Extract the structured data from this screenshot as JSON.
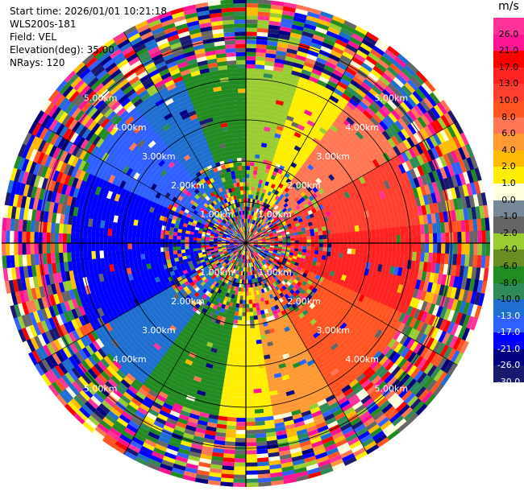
{
  "header": {
    "start_time": "Start time: 2026/01/01 10:21:18",
    "instrument": "WLS200s-181",
    "field": "Field: VEL",
    "elevation": "Elevation(deg): 35.00",
    "nrays": "NRays: 120"
  },
  "chart_data": {
    "type": "heatmap",
    "subtype": "polar-ppi",
    "nrays": 120,
    "range_ring_labels_km": [
      "1.00km",
      "2.00km",
      "3.00km",
      "4.00km",
      "5.00km"
    ],
    "range_rings_km": [
      1,
      2,
      3,
      4,
      5
    ],
    "grid": true,
    "colorbar": {
      "unit": "m/s",
      "tick_labels": [
        "26.0",
        "21.0",
        "17.0",
        "13.0",
        "10.0",
        "8.0",
        "6.0",
        "4.0",
        "2.0",
        "1.0",
        "0.0",
        "-1.0",
        "-2.0",
        "-4.0",
        "-6.0",
        "-8.0",
        "-10.0",
        "-13.0",
        "-17.0",
        "-21.0",
        "-26.0",
        "-30.0"
      ],
      "colors": [
        "#ff3399",
        "#ff1493",
        "#ff0000",
        "#ff2222",
        "#ff3f2f",
        "#ff5522",
        "#ff7755",
        "#ff9933",
        "#ffbb00",
        "#ffee00",
        "#ffffe0",
        "#778899",
        "#666666",
        "#9acd32",
        "#6b8e23",
        "#228b22",
        "#2e8b57",
        "#1e6fd0",
        "#3060ff",
        "#0000ff",
        "#000080",
        "#191970"
      ]
    },
    "sector_pattern": [
      {
        "azimuth_from": 0,
        "azimuth_to": 18,
        "color": "#9acd32"
      },
      {
        "azimuth_from": 18,
        "azimuth_to": 35,
        "color": "#ffee00"
      },
      {
        "azimuth_from": 35,
        "azimuth_to": 60,
        "color": "#ff7755"
      },
      {
        "azimuth_from": 60,
        "azimuth_to": 85,
        "color": "#ff3f2f"
      },
      {
        "azimuth_from": 85,
        "azimuth_to": 115,
        "color": "#ff2222"
      },
      {
        "azimuth_from": 115,
        "azimuth_to": 150,
        "color": "#ff5522"
      },
      {
        "azimuth_from": 150,
        "azimuth_to": 170,
        "color": "#ff9933"
      },
      {
        "azimuth_from": 170,
        "azimuth_to": 190,
        "color": "#ffee00"
      },
      {
        "azimuth_from": 190,
        "azimuth_to": 215,
        "color": "#228b22"
      },
      {
        "azimuth_from": 215,
        "azimuth_to": 240,
        "color": "#1e6fd0"
      },
      {
        "azimuth_from": 240,
        "azimuth_to": 295,
        "color": "#0000ff"
      },
      {
        "azimuth_from": 295,
        "azimuth_to": 320,
        "color": "#3060ff"
      },
      {
        "azimuth_from": 320,
        "azimuth_to": 340,
        "color": "#1e6fd0"
      },
      {
        "azimuth_from": 340,
        "azimuth_to": 360,
        "color": "#228b22"
      }
    ]
  }
}
